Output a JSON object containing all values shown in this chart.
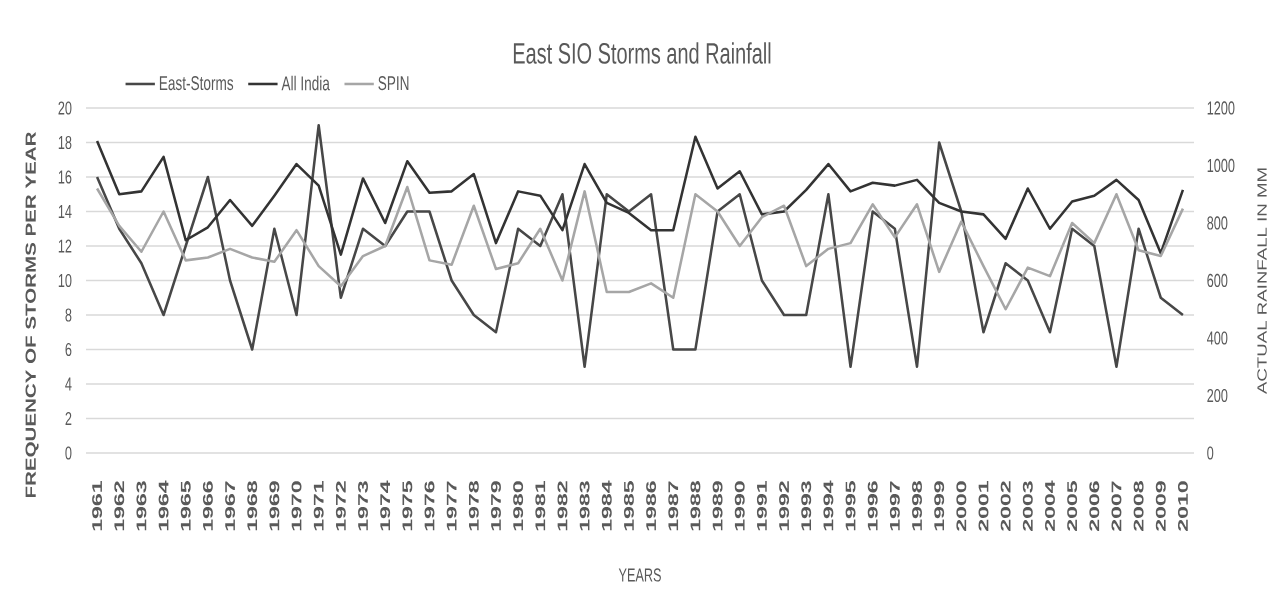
{
  "chart_data": {
    "type": "line",
    "title": "East SIO Storms and Rainfall",
    "xlabel": "YEARS",
    "ylabel": "FREQUENCY OF STORMS PER YEAR",
    "y2label": "ACTUAL RAINFALL IN MM",
    "categories": [
      "1961",
      "1962",
      "1963",
      "1964",
      "1965",
      "1966",
      "1967",
      "1968",
      "1969",
      "1970",
      "1971",
      "1972",
      "1973",
      "1974",
      "1975",
      "1976",
      "1977",
      "1978",
      "1979",
      "1980",
      "1981",
      "1982",
      "1983",
      "1984",
      "1985",
      "1986",
      "1987",
      "1988",
      "1989",
      "1990",
      "1991",
      "1992",
      "1993",
      "1994",
      "1995",
      "1996",
      "1997",
      "1998",
      "1999",
      "2000",
      "2001",
      "2002",
      "2003",
      "2004",
      "2005",
      "2006",
      "2007",
      "2008",
      "2009",
      "2010"
    ],
    "series": [
      {
        "name": "East-Storms",
        "color": "#474747",
        "axis": "y",
        "values": [
          16,
          13,
          11,
          8,
          12,
          16,
          10,
          6,
          13,
          8,
          19,
          9,
          13,
          12,
          14,
          14,
          10,
          8,
          7,
          13,
          12,
          15,
          5,
          15,
          14,
          15,
          6,
          6,
          14,
          15,
          10,
          8,
          8,
          15,
          5,
          14,
          13,
          5,
          18,
          14,
          7,
          11,
          10,
          7,
          13,
          12,
          5,
          13,
          9,
          8
        ]
      },
      {
        "name": "All India",
        "color": "#333333",
        "axis": "y2",
        "values": [
          1085,
          900,
          910,
          1030,
          740,
          785,
          880,
          790,
          895,
          1005,
          930,
          690,
          955,
          800,
          1015,
          905,
          910,
          970,
          730,
          910,
          895,
          775,
          1005,
          870,
          835,
          775,
          775,
          1100,
          920,
          980,
          830,
          840,
          915,
          1005,
          910,
          940,
          930,
          950,
          870,
          840,
          830,
          745,
          920,
          780,
          875,
          895,
          950,
          880,
          695,
          915
        ]
      },
      {
        "name": "SPIN",
        "color": "#a6a6a6",
        "axis": "y2",
        "values": [
          920,
          790,
          700,
          840,
          670,
          680,
          710,
          680,
          665,
          775,
          650,
          580,
          685,
          720,
          925,
          670,
          655,
          860,
          640,
          660,
          780,
          600,
          910,
          560,
          560,
          590,
          540,
          900,
          840,
          720,
          820,
          860,
          650,
          710,
          730,
          865,
          750,
          865,
          630,
          805,
          650,
          500,
          645,
          615,
          800,
          730,
          900,
          705,
          685,
          850
        ]
      }
    ],
    "ylim": [
      0,
      20
    ],
    "yticks": [
      0,
      2,
      4,
      6,
      8,
      10,
      12,
      14,
      16,
      18,
      20
    ],
    "y2lim": [
      0,
      1200
    ],
    "y2ticks": [
      0,
      200,
      400,
      600,
      800,
      1000,
      1200
    ],
    "grid": "y",
    "legend": "top left"
  }
}
